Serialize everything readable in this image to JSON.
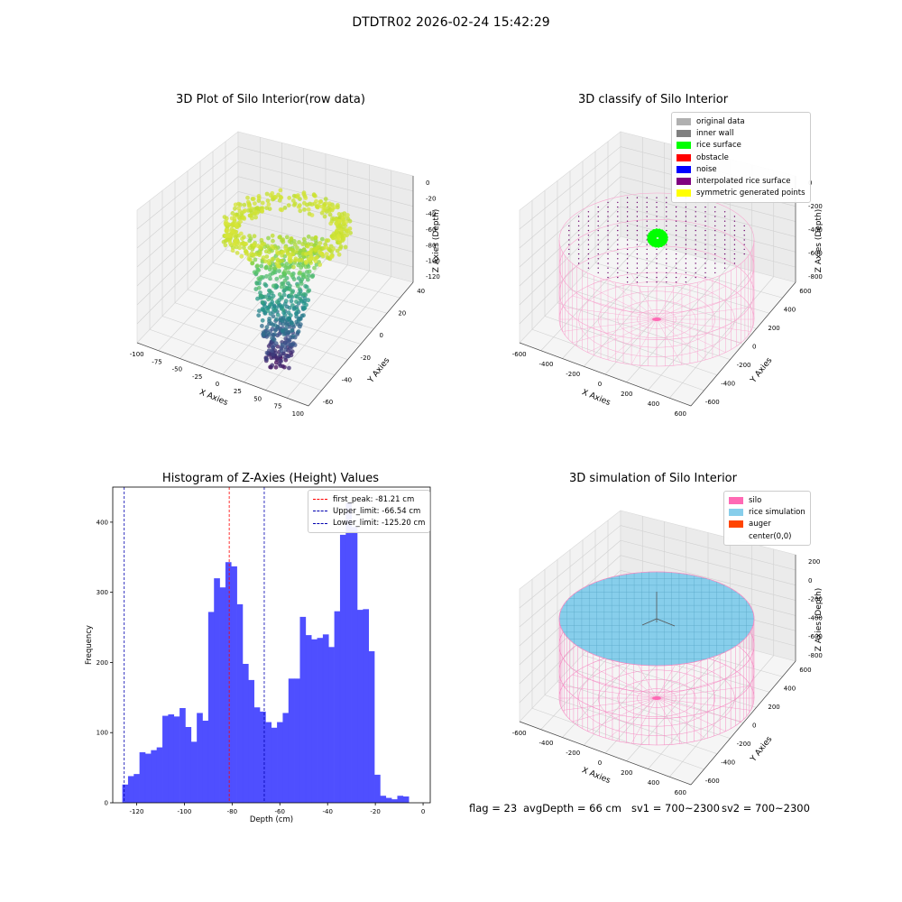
{
  "figure": {
    "title": "DTDTR02 2026-02-24 15:42:29",
    "footer": {
      "flag": "flag = 23",
      "avg_depth": "avgDepth = 66 cm",
      "sv1": "sv1 = 700~2300",
      "sv2": "sv2 = 700~2300"
    }
  },
  "chart_data": [
    {
      "type": "scatter",
      "projection": "3d",
      "title": "3D Plot of Silo Interior(row data)",
      "xlabel": "X Axies",
      "ylabel": "Y Axies",
      "zlabel": "Z Axies (Depth)",
      "xticks": [
        "-100",
        "-75",
        "-50",
        "-25",
        "0",
        "25",
        "50",
        "75",
        "100"
      ],
      "yticks": [
        "-60",
        "-40",
        "-20",
        "0",
        "20",
        "40"
      ],
      "zticks": [
        "0",
        "-20",
        "-40",
        "-60",
        "-80",
        "-100",
        "-120"
      ],
      "xlim": [
        -110,
        105
      ],
      "ylim": [
        -65,
        50
      ],
      "zlim": [
        -130,
        5
      ],
      "colormap": "viridis",
      "description_of_points": "ring of points near z=-20 to -40 (yellow-green), descending cone to z=-120 (dark purple) near x 25..60"
    },
    {
      "type": "scatter",
      "projection": "3d",
      "title": "3D classify of Silo Interior",
      "xlabel": "X Axies",
      "ylabel": "Y Axies",
      "zlabel": "Z Axies (Depth)",
      "xticks": [
        "-600",
        "-400",
        "-200",
        "0",
        "200",
        "400",
        "600"
      ],
      "yticks": [
        "-600",
        "-400",
        "-200",
        "0",
        "200",
        "400",
        "600"
      ],
      "zticks": [
        "0",
        "-200",
        "-400",
        "-600",
        "-800"
      ],
      "legend": [
        {
          "label": "original data",
          "color": "#b0b0b0"
        },
        {
          "label": "inner wall",
          "color": "#808080"
        },
        {
          "label": "rice surface",
          "color": "#00ff00"
        },
        {
          "label": "obstacle",
          "color": "#ff0000"
        },
        {
          "label": "noise",
          "color": "#0000ff"
        },
        {
          "label": "interpolated rice surface",
          "color": "#800080"
        },
        {
          "label": "symmetric generated points",
          "color": "#ffff00"
        }
      ]
    },
    {
      "type": "bar",
      "title": "Histogram of Z-Axies (Height) Values",
      "xlabel": "Depth (cm)",
      "ylabel": "Frequency",
      "bin_start": -126,
      "bin_width": 2.4,
      "values": [
        26,
        38,
        41,
        72,
        70,
        75,
        79,
        124,
        126,
        123,
        135,
        108,
        87,
        128,
        117,
        272,
        320,
        307,
        343,
        337,
        283,
        198,
        175,
        136,
        130,
        115,
        107,
        115,
        128,
        177,
        177,
        265,
        239,
        233,
        235,
        240,
        222,
        273,
        382,
        428,
        393,
        275,
        276,
        216,
        40,
        10,
        7,
        5,
        10,
        9
      ],
      "xlim": [
        -130,
        3
      ],
      "ylim": [
        0,
        450
      ],
      "xticks": [
        "-120",
        "-100",
        "-80",
        "-60",
        "-40",
        "-20",
        "0"
      ],
      "yticks": [
        "0",
        "100",
        "200",
        "300",
        "400"
      ],
      "bar_color": "#4b4bff",
      "vlines": [
        {
          "label": "first_peak: -81.21 cm",
          "x": -81.21,
          "color": "#ff0000"
        },
        {
          "label": "Upper_limit: -66.54 cm",
          "x": -66.54,
          "color": "#0000b0"
        },
        {
          "label": "Lower_limit: -125.20 cm",
          "x": -125.2,
          "color": "#0000b0"
        }
      ],
      "legend_position": "top-right"
    },
    {
      "type": "area",
      "projection": "3d",
      "title": "3D simulation of Silo Interior",
      "xlabel": "X Axies",
      "ylabel": "Y Axies",
      "zlabel": "Z Axies (Depth)",
      "xticks": [
        "-600",
        "-400",
        "-200",
        "0",
        "200",
        "400",
        "600"
      ],
      "yticks": [
        "-600",
        "-400",
        "-200",
        "0",
        "200",
        "400",
        "600"
      ],
      "zticks": [
        "200",
        "0",
        "-200",
        "-400",
        "-600",
        "-800"
      ],
      "legend": [
        {
          "label": "silo",
          "color": "#ff69b4"
        },
        {
          "label": "rice simulation",
          "color": "#87ceeb"
        },
        {
          "label": "auger",
          "color": "#ff4500"
        },
        {
          "label": "center(0,0)",
          "color": "#ffffff"
        }
      ]
    }
  ]
}
